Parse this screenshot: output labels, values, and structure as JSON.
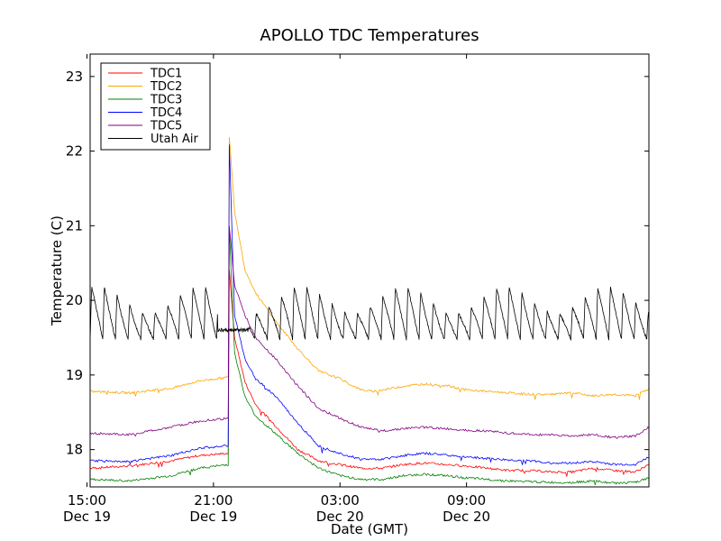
{
  "chart_data": {
    "type": "line",
    "title": "APOLLO TDC Temperatures",
    "xlabel": "Date (GMT)",
    "ylabel": "Temperature (C)",
    "ylim": [
      17.5,
      23.3
    ],
    "xlim_hours": [
      -8.85,
      17.65
    ],
    "xlim_note": "hours relative to 00:00 GMT Dec 20",
    "yticks": [
      {
        "value": 18,
        "label": "18"
      },
      {
        "value": 19,
        "label": "19"
      },
      {
        "value": 20,
        "label": "20"
      },
      {
        "value": 21,
        "label": "21"
      },
      {
        "value": 22,
        "label": "22"
      },
      {
        "value": 23,
        "label": "23"
      }
    ],
    "xticks": [
      {
        "hour": -9,
        "time": "15:00",
        "date": "Dec 19"
      },
      {
        "hour": -3,
        "time": "21:00",
        "date": "Dec 19"
      },
      {
        "hour": 3,
        "time": "03:00",
        "date": "Dec 20"
      },
      {
        "hour": 9,
        "time": "09:00",
        "date": "Dec 20"
      }
    ],
    "legend_position": "top-left",
    "series": [
      {
        "name": "TDC1",
        "color": "#ff0000",
        "points": [
          [
            -8.85,
            17.75
          ],
          [
            -7,
            17.78
          ],
          [
            -5,
            17.85
          ],
          [
            -3.7,
            17.92
          ],
          [
            -2.3,
            17.95
          ],
          [
            -2.25,
            20.4
          ],
          [
            -2.0,
            19.5
          ],
          [
            -1.5,
            18.9
          ],
          [
            -1,
            18.6
          ],
          [
            0,
            18.3
          ],
          [
            1,
            18.0
          ],
          [
            2,
            17.85
          ],
          [
            3,
            17.8
          ],
          [
            4,
            17.75
          ],
          [
            5,
            17.75
          ],
          [
            6,
            17.8
          ],
          [
            7,
            17.82
          ],
          [
            8,
            17.8
          ],
          [
            9,
            17.78
          ],
          [
            10,
            17.75
          ],
          [
            11,
            17.72
          ],
          [
            12,
            17.72
          ],
          [
            13,
            17.7
          ],
          [
            14,
            17.7
          ],
          [
            15,
            17.75
          ],
          [
            16,
            17.72
          ],
          [
            17,
            17.7
          ],
          [
            17.65,
            17.8
          ]
        ]
      },
      {
        "name": "TDC2",
        "color": "#ffa500",
        "points": [
          [
            -8.85,
            18.78
          ],
          [
            -7,
            18.76
          ],
          [
            -5,
            18.82
          ],
          [
            -3.7,
            18.92
          ],
          [
            -2.3,
            18.97
          ],
          [
            -2.25,
            22.2
          ],
          [
            -2.0,
            21.2
          ],
          [
            -1.5,
            20.4
          ],
          [
            -1,
            20.1
          ],
          [
            0,
            19.7
          ],
          [
            1,
            19.35
          ],
          [
            2,
            19.05
          ],
          [
            3,
            18.95
          ],
          [
            4,
            18.8
          ],
          [
            4.5,
            18.78
          ],
          [
            5,
            18.8
          ],
          [
            6,
            18.85
          ],
          [
            7,
            18.88
          ],
          [
            8,
            18.86
          ],
          [
            9,
            18.8
          ],
          [
            10,
            18.78
          ],
          [
            11,
            18.76
          ],
          [
            12,
            18.74
          ],
          [
            13,
            18.74
          ],
          [
            14,
            18.76
          ],
          [
            15,
            18.72
          ],
          [
            16,
            18.74
          ],
          [
            17,
            18.72
          ],
          [
            17.65,
            18.82
          ]
        ]
      },
      {
        "name": "TDC3",
        "color": "#008000",
        "points": [
          [
            -8.85,
            17.6
          ],
          [
            -7,
            17.58
          ],
          [
            -5,
            17.65
          ],
          [
            -3.7,
            17.75
          ],
          [
            -2.3,
            17.8
          ],
          [
            -2.25,
            21.0
          ],
          [
            -2.0,
            19.3
          ],
          [
            -1.5,
            18.7
          ],
          [
            -1,
            18.45
          ],
          [
            0,
            18.2
          ],
          [
            1,
            17.95
          ],
          [
            2,
            17.75
          ],
          [
            3,
            17.65
          ],
          [
            4,
            17.6
          ],
          [
            5,
            17.6
          ],
          [
            6,
            17.65
          ],
          [
            7,
            17.67
          ],
          [
            8,
            17.65
          ],
          [
            9,
            17.62
          ],
          [
            10,
            17.6
          ],
          [
            11,
            17.58
          ],
          [
            12,
            17.57
          ],
          [
            13,
            17.56
          ],
          [
            14,
            17.56
          ],
          [
            15,
            17.58
          ],
          [
            16,
            17.55
          ],
          [
            17,
            17.56
          ],
          [
            17.65,
            17.62
          ]
        ]
      },
      {
        "name": "TDC4",
        "color": "#0000ff",
        "points": [
          [
            -8.85,
            17.85
          ],
          [
            -7,
            17.84
          ],
          [
            -5,
            17.92
          ],
          [
            -3.7,
            18.02
          ],
          [
            -2.3,
            18.05
          ],
          [
            -2.25,
            22.1
          ],
          [
            -2.0,
            19.8
          ],
          [
            -1.5,
            19.2
          ],
          [
            -1,
            18.95
          ],
          [
            0,
            18.7
          ],
          [
            1,
            18.35
          ],
          [
            2,
            18.05
          ],
          [
            3,
            17.95
          ],
          [
            4,
            17.87
          ],
          [
            5,
            17.87
          ],
          [
            6,
            17.92
          ],
          [
            7,
            17.95
          ],
          [
            8,
            17.93
          ],
          [
            9,
            17.9
          ],
          [
            10,
            17.88
          ],
          [
            11,
            17.86
          ],
          [
            12,
            17.85
          ],
          [
            13,
            17.82
          ],
          [
            14,
            17.82
          ],
          [
            15,
            17.84
          ],
          [
            16,
            17.8
          ],
          [
            17,
            17.8
          ],
          [
            17.65,
            17.9
          ]
        ]
      },
      {
        "name": "TDC5",
        "color": "#800080",
        "points": [
          [
            -8.85,
            18.22
          ],
          [
            -7,
            18.2
          ],
          [
            -5,
            18.3
          ],
          [
            -3.7,
            18.38
          ],
          [
            -2.3,
            18.42
          ],
          [
            -2.25,
            21.0
          ],
          [
            -2.0,
            20.2
          ],
          [
            -1.5,
            19.8
          ],
          [
            -1,
            19.5
          ],
          [
            0,
            19.2
          ],
          [
            1,
            18.85
          ],
          [
            2,
            18.55
          ],
          [
            3,
            18.42
          ],
          [
            4,
            18.3
          ],
          [
            5,
            18.25
          ],
          [
            6,
            18.28
          ],
          [
            7,
            18.3
          ],
          [
            8,
            18.28
          ],
          [
            9,
            18.26
          ],
          [
            10,
            18.25
          ],
          [
            11,
            18.22
          ],
          [
            12,
            18.2
          ],
          [
            13,
            18.2
          ],
          [
            14,
            18.18
          ],
          [
            15,
            18.2
          ],
          [
            16,
            18.16
          ],
          [
            17,
            18.18
          ],
          [
            17.65,
            18.3
          ]
        ]
      },
      {
        "name": "Utah Air",
        "color": "#000000",
        "sawtooth": {
          "start_hour": -8.85,
          "end_hour": 17.65,
          "period_hours": 0.6,
          "low": 19.48,
          "high": 20.1,
          "gap_start": -2.8,
          "gap_end": -1.3,
          "gap_level": 19.6
        }
      }
    ]
  }
}
